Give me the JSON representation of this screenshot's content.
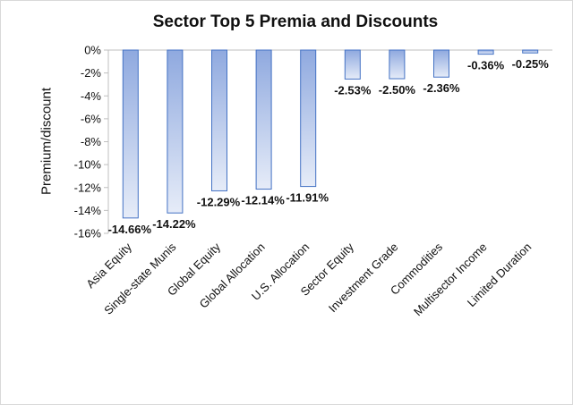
{
  "chart_data": {
    "type": "bar",
    "title": "Sector Top 5 Premia and Discounts",
    "xlabel": "",
    "ylabel": "Premium/discount",
    "categories": [
      "Asia Equity",
      "Single-state Munis",
      "Global Equity",
      "Global Allocation",
      "U.S. Allocation",
      "Sector Equity",
      "Investment Grade",
      "Commodities",
      "Multisector Income",
      "Limited Duration"
    ],
    "values": [
      -14.66,
      -14.22,
      -12.29,
      -12.14,
      -11.91,
      -2.53,
      -2.5,
      -2.36,
      -0.36,
      -0.25
    ],
    "data_labels": [
      "-14.66%",
      "-14.22%",
      "-12.29%",
      "-12.14%",
      "-11.91%",
      "-2.53%",
      "-2.50%",
      "-2.36%",
      "-0.36%",
      "-0.25%"
    ],
    "ylim": [
      -16,
      0
    ],
    "yticks": [
      "0%",
      "-2%",
      "-4%",
      "-6%",
      "-8%",
      "-10%",
      "-12%",
      "-14%",
      "-16%"
    ],
    "grid": false,
    "legend": "none",
    "colors": {
      "bar_top": "#8fa9df",
      "bar_bottom": "#e6ecf8",
      "bar_edge": "#4472c4",
      "axis": "#bfbfbf",
      "text": "#111111"
    }
  }
}
